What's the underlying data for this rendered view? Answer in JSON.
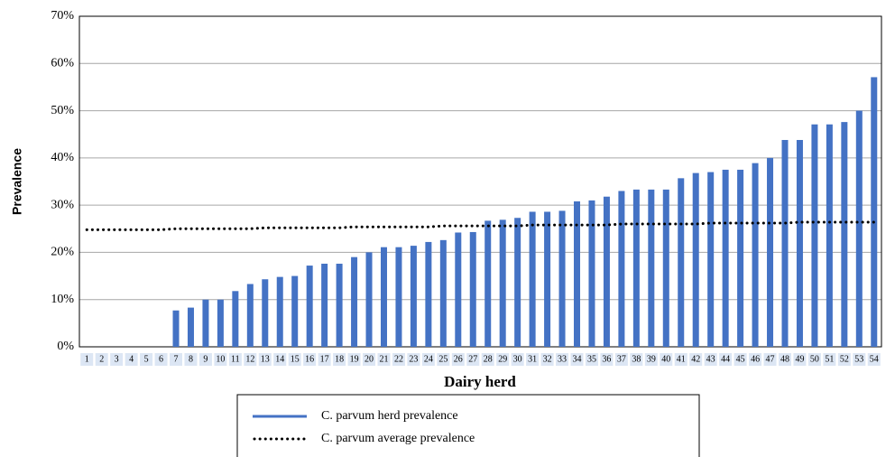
{
  "chart_data": {
    "type": "bar",
    "x_label": "Dairy herd",
    "y_label": "Prevalence",
    "categories": [
      "1",
      "2",
      "3",
      "4",
      "5",
      "6",
      "7",
      "8",
      "9",
      "10",
      "11",
      "12",
      "13",
      "14",
      "15",
      "16",
      "17",
      "18",
      "19",
      "20",
      "21",
      "22",
      "23",
      "24",
      "25",
      "26",
      "27",
      "28",
      "29",
      "30",
      "31",
      "32",
      "33",
      "34",
      "35",
      "36",
      "37",
      "38",
      "39",
      "40",
      "41",
      "42",
      "43",
      "44",
      "45",
      "46",
      "47",
      "48",
      "49",
      "50",
      "51",
      "52",
      "53",
      "54"
    ],
    "series": [
      {
        "name": "C. parvum herd prevalence",
        "color": "#4472c4",
        "kind": "bar",
        "values": [
          0,
          0,
          0,
          0,
          0,
          0,
          7.7,
          8.3,
          10,
          10,
          11.8,
          13.3,
          14.3,
          14.8,
          15,
          17.2,
          17.6,
          17.6,
          19,
          20,
          21.1,
          21.1,
          21.4,
          22.2,
          22.6,
          24.2,
          24.3,
          26.7,
          26.9,
          27.3,
          28.6,
          28.6,
          28.8,
          30.8,
          31,
          31.8,
          33,
          33.3,
          33.3,
          33.3,
          35.7,
          36.8,
          37,
          37.5,
          37.5,
          38.9,
          40,
          43.8,
          43.8,
          47.1,
          47.1,
          47.6,
          50,
          57.1
        ]
      },
      {
        "name": "C. parvum average prevalence",
        "color": "#000000",
        "kind": "line",
        "values": [
          24.8,
          24.8,
          24.8,
          24.8,
          24.8,
          24.8,
          25.0,
          25.0,
          25.0,
          25.0,
          25.0,
          25.0,
          25.2,
          25.2,
          25.2,
          25.2,
          25.2,
          25.2,
          25.4,
          25.4,
          25.4,
          25.4,
          25.4,
          25.4,
          25.6,
          25.6,
          25.6,
          25.6,
          25.6,
          25.6,
          25.8,
          25.8,
          25.8,
          25.8,
          25.8,
          25.8,
          26.0,
          26.0,
          26.0,
          26.0,
          26.0,
          26.0,
          26.2,
          26.2,
          26.2,
          26.2,
          26.2,
          26.2,
          26.4,
          26.4,
          26.4,
          26.4,
          26.4,
          26.4
        ]
      }
    ],
    "ylim": [
      0,
      70
    ],
    "yticks": [
      {
        "value": 0,
        "label": "0%"
      },
      {
        "value": 10,
        "label": "10%"
      },
      {
        "value": 20,
        "label": "20%"
      },
      {
        "value": 30,
        "label": "30%"
      },
      {
        "value": 40,
        "label": "40%"
      },
      {
        "value": 50,
        "label": "50%"
      },
      {
        "value": 60,
        "label": "60%"
      },
      {
        "value": 70,
        "label": "70%"
      }
    ],
    "grid": true
  }
}
